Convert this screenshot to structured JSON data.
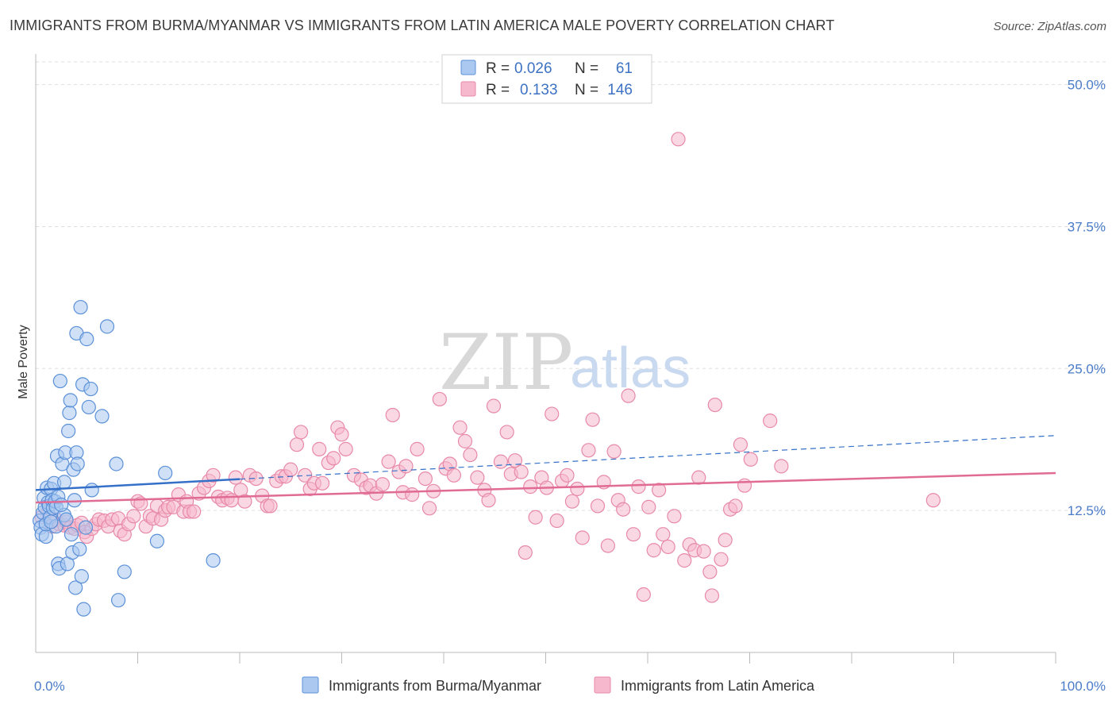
{
  "header": {
    "title": "IMMIGRANTS FROM BURMA/MYANMAR VS IMMIGRANTS FROM LATIN AMERICA MALE POVERTY CORRELATION CHART",
    "source": "Source: ZipAtlas.com"
  },
  "watermark": {
    "zip": "ZIP",
    "atlas": "atlas"
  },
  "colors": {
    "blue_fill": "#aac8f0",
    "blue_stroke": "#5b90d8",
    "blue_line": "#3470c8",
    "pink_fill": "#f6b8cc",
    "pink_stroke": "#e889a8",
    "pink_line": "#e06b94",
    "grid": "#dddddd",
    "tick_label": "#4a7cc9"
  },
  "legend": {
    "rows": [
      {
        "r_label": "R =",
        "r_value": "0.026",
        "n_label": "N =",
        "n_value": "61"
      },
      {
        "r_label": "R =",
        "r_value": "0.133",
        "n_label": "N =",
        "n_value": "146"
      }
    ]
  },
  "chart_data": {
    "type": "scatter",
    "xlabel": "",
    "ylabel": "Male Poverty",
    "xlim": [
      0,
      100
    ],
    "ylim": [
      0,
      52
    ],
    "x_tick_labels": [
      "0.0%",
      "100.0%"
    ],
    "y_ticks": [
      12.5,
      25.0,
      37.5,
      50.0
    ],
    "y_tick_labels": [
      "12.5%",
      "25.0%",
      "37.5%",
      "50.0%"
    ],
    "grid": true,
    "legend_position": "bottom",
    "series": [
      {
        "name": "Immigrants from Burma/Myanmar",
        "trend": {
          "x": [
            0,
            100
          ],
          "y": [
            14.3,
            19.1
          ],
          "solid_until_x": 20
        },
        "points": [
          [
            0.4,
            11.6
          ],
          [
            0.5,
            11.0
          ],
          [
            0.6,
            10.4
          ],
          [
            0.7,
            12.3
          ],
          [
            0.8,
            13.6
          ],
          [
            0.9,
            12.8
          ],
          [
            1.0,
            10.2
          ],
          [
            1.0,
            11.3
          ],
          [
            1.1,
            14.5
          ],
          [
            1.2,
            13.2
          ],
          [
            1.3,
            12.9
          ],
          [
            1.4,
            11.9
          ],
          [
            1.5,
            14.4
          ],
          [
            1.6,
            13.4
          ],
          [
            1.7,
            12.7
          ],
          [
            1.8,
            14.9
          ],
          [
            1.9,
            13.3
          ],
          [
            2.0,
            12.8
          ],
          [
            2.0,
            11.1
          ],
          [
            2.1,
            17.3
          ],
          [
            2.2,
            13.7
          ],
          [
            2.2,
            7.8
          ],
          [
            2.3,
            7.4
          ],
          [
            2.4,
            23.9
          ],
          [
            2.6,
            16.6
          ],
          [
            2.8,
            12.1
          ],
          [
            2.8,
            15.0
          ],
          [
            2.9,
            17.6
          ],
          [
            3.0,
            11.7
          ],
          [
            3.1,
            7.8
          ],
          [
            3.2,
            19.5
          ],
          [
            3.3,
            21.1
          ],
          [
            3.4,
            22.2
          ],
          [
            3.5,
            10.4
          ],
          [
            3.6,
            8.8
          ],
          [
            3.7,
            16.1
          ],
          [
            3.8,
            13.4
          ],
          [
            3.9,
            5.7
          ],
          [
            4.0,
            28.1
          ],
          [
            4.0,
            17.6
          ],
          [
            4.1,
            16.6
          ],
          [
            4.3,
            9.1
          ],
          [
            4.4,
            30.4
          ],
          [
            4.5,
            6.7
          ],
          [
            4.6,
            23.6
          ],
          [
            4.7,
            3.8
          ],
          [
            4.9,
            11.0
          ],
          [
            5.0,
            27.6
          ],
          [
            5.2,
            21.6
          ],
          [
            5.4,
            23.2
          ],
          [
            5.5,
            14.3
          ],
          [
            6.5,
            20.8
          ],
          [
            7.0,
            28.7
          ],
          [
            7.9,
            16.6
          ],
          [
            8.1,
            4.6
          ],
          [
            8.7,
            7.1
          ],
          [
            11.9,
            9.8
          ],
          [
            12.7,
            15.8
          ],
          [
            17.4,
            8.1
          ],
          [
            1.5,
            11.5
          ],
          [
            2.5,
            13.0
          ]
        ]
      },
      {
        "name": "Immigrants from Latin America",
        "trend": {
          "x": [
            0,
            100
          ],
          "y": [
            13.2,
            15.8
          ]
        },
        "points": [
          [
            0.6,
            11.9
          ],
          [
            1.2,
            12.4
          ],
          [
            1.6,
            11.1
          ],
          [
            2.0,
            11.7
          ],
          [
            2.3,
            11.3
          ],
          [
            2.8,
            11.2
          ],
          [
            3.0,
            11.5
          ],
          [
            3.4,
            11.0
          ],
          [
            3.8,
            10.9
          ],
          [
            4.1,
            11.2
          ],
          [
            4.5,
            11.4
          ],
          [
            4.8,
            10.6
          ],
          [
            5.0,
            10.2
          ],
          [
            5.5,
            10.9
          ],
          [
            5.9,
            11.3
          ],
          [
            6.2,
            11.7
          ],
          [
            6.7,
            11.6
          ],
          [
            7.1,
            11.1
          ],
          [
            7.5,
            11.7
          ],
          [
            8.1,
            11.8
          ],
          [
            8.3,
            10.7
          ],
          [
            8.7,
            10.4
          ],
          [
            9.1,
            11.3
          ],
          [
            9.6,
            12.0
          ],
          [
            10.0,
            13.3
          ],
          [
            10.3,
            13.1
          ],
          [
            10.8,
            11.1
          ],
          [
            11.2,
            12.0
          ],
          [
            11.5,
            11.8
          ],
          [
            11.9,
            12.9
          ],
          [
            12.3,
            11.7
          ],
          [
            12.7,
            12.5
          ],
          [
            13.0,
            12.8
          ],
          [
            13.5,
            12.8
          ],
          [
            14.0,
            13.9
          ],
          [
            14.5,
            12.4
          ],
          [
            14.8,
            13.3
          ],
          [
            15.1,
            12.4
          ],
          [
            15.5,
            12.4
          ],
          [
            16.0,
            14.0
          ],
          [
            16.5,
            14.5
          ],
          [
            17.0,
            15.1
          ],
          [
            17.4,
            15.6
          ],
          [
            17.9,
            13.7
          ],
          [
            18.3,
            13.4
          ],
          [
            18.8,
            13.6
          ],
          [
            19.2,
            13.4
          ],
          [
            19.6,
            15.4
          ],
          [
            20.1,
            14.3
          ],
          [
            20.5,
            13.3
          ],
          [
            21.0,
            15.6
          ],
          [
            21.6,
            15.3
          ],
          [
            22.2,
            13.8
          ],
          [
            22.7,
            12.9
          ],
          [
            23.0,
            12.9
          ],
          [
            23.6,
            15.1
          ],
          [
            24.1,
            15.5
          ],
          [
            24.5,
            15.5
          ],
          [
            25.0,
            16.1
          ],
          [
            25.6,
            18.3
          ],
          [
            26.0,
            19.4
          ],
          [
            26.4,
            15.6
          ],
          [
            26.9,
            14.4
          ],
          [
            27.3,
            14.9
          ],
          [
            27.8,
            17.9
          ],
          [
            28.1,
            14.9
          ],
          [
            28.7,
            16.7
          ],
          [
            29.2,
            17.1
          ],
          [
            29.6,
            19.8
          ],
          [
            30.0,
            19.2
          ],
          [
            30.4,
            17.9
          ],
          [
            31.2,
            15.6
          ],
          [
            31.9,
            15.2
          ],
          [
            32.4,
            14.5
          ],
          [
            32.8,
            14.7
          ],
          [
            33.4,
            14.0
          ],
          [
            34.0,
            14.8
          ],
          [
            34.6,
            16.8
          ],
          [
            35.0,
            20.9
          ],
          [
            35.6,
            15.9
          ],
          [
            36.0,
            14.1
          ],
          [
            36.3,
            16.4
          ],
          [
            36.9,
            13.9
          ],
          [
            37.4,
            17.9
          ],
          [
            38.2,
            15.3
          ],
          [
            38.6,
            12.7
          ],
          [
            39.0,
            14.2
          ],
          [
            39.6,
            22.3
          ],
          [
            40.2,
            16.2
          ],
          [
            40.6,
            16.6
          ],
          [
            41.0,
            15.6
          ],
          [
            41.6,
            19.8
          ],
          [
            42.1,
            18.6
          ],
          [
            42.6,
            17.4
          ],
          [
            43.3,
            15.4
          ],
          [
            44.0,
            14.3
          ],
          [
            44.4,
            13.4
          ],
          [
            44.9,
            21.7
          ],
          [
            45.6,
            16.8
          ],
          [
            46.2,
            19.4
          ],
          [
            46.6,
            15.7
          ],
          [
            47.0,
            16.9
          ],
          [
            47.6,
            15.9
          ],
          [
            48.0,
            8.8
          ],
          [
            48.5,
            14.6
          ],
          [
            49.0,
            11.9
          ],
          [
            49.6,
            15.4
          ],
          [
            50.1,
            14.5
          ],
          [
            50.6,
            21.0
          ],
          [
            51.1,
            11.6
          ],
          [
            51.6,
            15.1
          ],
          [
            52.1,
            15.6
          ],
          [
            52.6,
            13.3
          ],
          [
            53.1,
            14.4
          ],
          [
            53.6,
            10.1
          ],
          [
            54.2,
            17.8
          ],
          [
            54.6,
            20.5
          ],
          [
            55.1,
            12.9
          ],
          [
            55.7,
            15.0
          ],
          [
            56.1,
            9.4
          ],
          [
            56.7,
            17.7
          ],
          [
            57.1,
            13.4
          ],
          [
            57.6,
            12.6
          ],
          [
            58.1,
            22.6
          ],
          [
            58.6,
            10.4
          ],
          [
            59.1,
            14.6
          ],
          [
            59.6,
            5.1
          ],
          [
            60.1,
            12.8
          ],
          [
            60.6,
            9.0
          ],
          [
            61.1,
            14.3
          ],
          [
            61.5,
            10.4
          ],
          [
            62.0,
            9.3
          ],
          [
            62.6,
            12.0
          ],
          [
            63.0,
            45.2
          ],
          [
            63.6,
            8.1
          ],
          [
            64.1,
            9.5
          ],
          [
            64.6,
            9.0
          ],
          [
            65.0,
            15.4
          ],
          [
            65.5,
            8.9
          ],
          [
            66.1,
            7.1
          ],
          [
            66.6,
            21.8
          ],
          [
            67.2,
            8.2
          ],
          [
            67.6,
            9.9
          ],
          [
            68.1,
            12.6
          ],
          [
            68.6,
            12.9
          ],
          [
            69.1,
            18.3
          ],
          [
            69.5,
            14.7
          ],
          [
            70.1,
            17.0
          ],
          [
            72.0,
            20.4
          ],
          [
            73.1,
            16.4
          ],
          [
            88.0,
            13.4
          ],
          [
            66.3,
            5.0
          ]
        ]
      }
    ]
  },
  "bottom_legend": {
    "items": [
      {
        "label": "Immigrants from Burma/Myanmar"
      },
      {
        "label": "Immigrants from Latin America"
      }
    ]
  }
}
